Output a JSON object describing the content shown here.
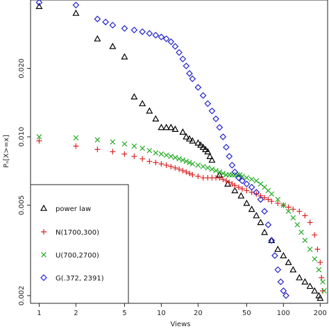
{
  "chart_data": {
    "type": "scatter",
    "xlabel": "Views",
    "ylabel": "Pₒ[X>=x]",
    "x_scale": "log",
    "y_scale": "log",
    "xlim": [
      0.85,
      230
    ],
    "ylim": [
      0.00185,
      0.04
    ],
    "x_ticks": [
      1,
      2,
      5,
      10,
      20,
      50,
      100,
      200
    ],
    "y_ticks": [
      0.002,
      0.005,
      0.01,
      0.02
    ],
    "y_tick_labels": [
      "0.002",
      "0.005",
      "0.010",
      "0.020"
    ],
    "legend_position": "bottom-left",
    "series": [
      {
        "name": "power law",
        "marker": "triangle",
        "color": "#000000",
        "points": [
          [
            1,
            0.0375
          ],
          [
            2,
            0.035
          ],
          [
            3,
            0.027
          ],
          [
            4,
            0.025
          ],
          [
            5,
            0.0225
          ],
          [
            6,
            0.015
          ],
          [
            7,
            0.014
          ],
          [
            8,
            0.013
          ],
          [
            9,
            0.012
          ],
          [
            10,
            0.011
          ],
          [
            11,
            0.011
          ],
          [
            12,
            0.011
          ],
          [
            13,
            0.0108
          ],
          [
            15,
            0.0105
          ],
          [
            16,
            0.01
          ],
          [
            17,
            0.0098
          ],
          [
            18,
            0.0096
          ],
          [
            20,
            0.0094
          ],
          [
            21,
            0.0092
          ],
          [
            22,
            0.009
          ],
          [
            23,
            0.0088
          ],
          [
            24,
            0.0086
          ],
          [
            25,
            0.0082
          ],
          [
            26,
            0.0079
          ],
          [
            30,
            0.0068
          ],
          [
            35,
            0.0062
          ],
          [
            40,
            0.0058
          ],
          [
            45,
            0.0055
          ],
          [
            50,
            0.0051
          ],
          [
            55,
            0.0048
          ],
          [
            60,
            0.0045
          ],
          [
            65,
            0.0042
          ],
          [
            70,
            0.0038
          ],
          [
            80,
            0.0035
          ],
          [
            90,
            0.0032
          ],
          [
            100,
            0.003
          ],
          [
            110,
            0.0028
          ],
          [
            120,
            0.0026
          ],
          [
            135,
            0.0024
          ],
          [
            150,
            0.0023
          ],
          [
            165,
            0.0022
          ],
          [
            180,
            0.0021
          ],
          [
            195,
            0.002
          ],
          [
            200,
            0.00195
          ]
        ]
      },
      {
        "name": "N(1700,300)",
        "marker": "plus",
        "color": "#dd2222",
        "points": [
          [
            1,
            0.0096
          ],
          [
            2,
            0.0091
          ],
          [
            3,
            0.0088
          ],
          [
            4,
            0.0086
          ],
          [
            5,
            0.0084
          ],
          [
            6,
            0.0082
          ],
          [
            7,
            0.008
          ],
          [
            8,
            0.0078
          ],
          [
            9,
            0.0077
          ],
          [
            10,
            0.0076
          ],
          [
            11,
            0.0075
          ],
          [
            12,
            0.0074
          ],
          [
            13,
            0.0073
          ],
          [
            14,
            0.0072
          ],
          [
            15,
            0.0071
          ],
          [
            16,
            0.007
          ],
          [
            17,
            0.0069
          ],
          [
            18,
            0.0068
          ],
          [
            20,
            0.0067
          ],
          [
            22,
            0.0066
          ],
          [
            24,
            0.0066
          ],
          [
            26,
            0.0066
          ],
          [
            28,
            0.0066
          ],
          [
            30,
            0.0066
          ],
          [
            32,
            0.0065
          ],
          [
            34,
            0.0064
          ],
          [
            36,
            0.0063
          ],
          [
            38,
            0.0062
          ],
          [
            40,
            0.0061
          ],
          [
            43,
            0.006
          ],
          [
            46,
            0.0059
          ],
          [
            50,
            0.0058
          ],
          [
            55,
            0.0057
          ],
          [
            60,
            0.0056
          ],
          [
            65,
            0.0055
          ],
          [
            70,
            0.0054
          ],
          [
            75,
            0.0053
          ],
          [
            80,
            0.0052
          ],
          [
            90,
            0.0051
          ],
          [
            100,
            0.005
          ],
          [
            110,
            0.0049
          ],
          [
            120,
            0.0048
          ],
          [
            135,
            0.0047
          ],
          [
            150,
            0.0045
          ],
          [
            165,
            0.0042
          ],
          [
            180,
            0.0037
          ],
          [
            190,
            0.0032
          ],
          [
            200,
            0.0028
          ],
          [
            205,
            0.0024
          ],
          [
            210,
            0.0021
          ]
        ]
      },
      {
        "name": "U(700,2700)",
        "marker": "cross",
        "color": "#22aa22",
        "points": [
          [
            1,
            0.01
          ],
          [
            2,
            0.0099
          ],
          [
            3,
            0.0097
          ],
          [
            4,
            0.0095
          ],
          [
            5,
            0.0093
          ],
          [
            6,
            0.0091
          ],
          [
            7,
            0.0089
          ],
          [
            8,
            0.0087
          ],
          [
            9,
            0.0085
          ],
          [
            10,
            0.0084
          ],
          [
            11,
            0.0083
          ],
          [
            12,
            0.0082
          ],
          [
            13,
            0.0081
          ],
          [
            14,
            0.008
          ],
          [
            15,
            0.0079
          ],
          [
            16,
            0.0078
          ],
          [
            17,
            0.0077
          ],
          [
            18,
            0.0076
          ],
          [
            20,
            0.0075
          ],
          [
            22,
            0.0074
          ],
          [
            24,
            0.0073
          ],
          [
            26,
            0.0072
          ],
          [
            28,
            0.0071
          ],
          [
            30,
            0.007
          ],
          [
            32,
            0.0069
          ],
          [
            34,
            0.0068
          ],
          [
            36,
            0.0068
          ],
          [
            38,
            0.0068
          ],
          [
            40,
            0.0068
          ],
          [
            42,
            0.0068
          ],
          [
            44,
            0.0068
          ],
          [
            46,
            0.0067
          ],
          [
            50,
            0.0066
          ],
          [
            55,
            0.0065
          ],
          [
            60,
            0.0064
          ],
          [
            65,
            0.0062
          ],
          [
            70,
            0.006
          ],
          [
            75,
            0.0058
          ],
          [
            80,
            0.0056
          ],
          [
            90,
            0.0053
          ],
          [
            100,
            0.005
          ],
          [
            110,
            0.0047
          ],
          [
            120,
            0.0044
          ],
          [
            130,
            0.0041
          ],
          [
            140,
            0.0038
          ],
          [
            150,
            0.0035
          ],
          [
            165,
            0.0032
          ],
          [
            180,
            0.0029
          ],
          [
            195,
            0.0026
          ],
          [
            210,
            0.0023
          ],
          [
            215,
            0.0021
          ]
        ]
      },
      {
        "name": "G(.372, 2391)",
        "marker": "diamond",
        "color": "#2222cc",
        "points": [
          [
            1,
            0.039
          ],
          [
            2,
            0.038
          ],
          [
            3,
            0.033
          ],
          [
            3.5,
            0.032
          ],
          [
            4,
            0.031
          ],
          [
            5,
            0.03
          ],
          [
            6,
            0.0295
          ],
          [
            7,
            0.029
          ],
          [
            8,
            0.0285
          ],
          [
            9,
            0.028
          ],
          [
            10,
            0.0275
          ],
          [
            11,
            0.027
          ],
          [
            12,
            0.0262
          ],
          [
            13,
            0.025
          ],
          [
            14,
            0.0235
          ],
          [
            15,
            0.022
          ],
          [
            16,
            0.0205
          ],
          [
            17,
            0.019
          ],
          [
            18,
            0.018
          ],
          [
            20,
            0.0165
          ],
          [
            22,
            0.0152
          ],
          [
            24,
            0.014
          ],
          [
            26,
            0.013
          ],
          [
            28,
            0.012
          ],
          [
            30,
            0.011
          ],
          [
            32,
            0.01
          ],
          [
            34,
            0.009
          ],
          [
            36,
            0.0082
          ],
          [
            38,
            0.0075
          ],
          [
            40,
            0.007
          ],
          [
            43,
            0.0066
          ],
          [
            46,
            0.0064
          ],
          [
            50,
            0.0062
          ],
          [
            55,
            0.006
          ],
          [
            60,
            0.0057
          ],
          [
            65,
            0.0053
          ],
          [
            70,
            0.0047
          ],
          [
            75,
            0.0041
          ],
          [
            80,
            0.0035
          ],
          [
            85,
            0.003
          ],
          [
            90,
            0.0026
          ],
          [
            95,
            0.0023
          ],
          [
            100,
            0.0021
          ],
          [
            105,
            0.002
          ]
        ]
      }
    ]
  }
}
